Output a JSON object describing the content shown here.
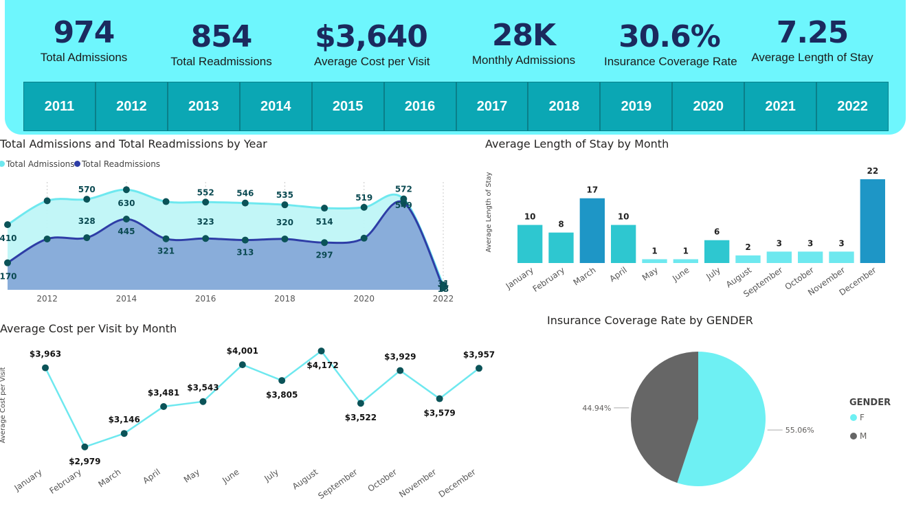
{
  "kpis": [
    {
      "value": "974",
      "label": "Total Admissions"
    },
    {
      "value": "854",
      "label": "Total Readmissions"
    },
    {
      "value": "$3,640",
      "label": "Average Cost per Visit"
    },
    {
      "value": "28K",
      "label": "Monthly Admissions"
    },
    {
      "value": "30.6%",
      "label": "Insurance Coverage Rate"
    },
    {
      "value": "7.25",
      "label": "Average Length of Stay"
    }
  ],
  "years": [
    "2011",
    "2012",
    "2013",
    "2014",
    "2015",
    "2016",
    "2017",
    "2018",
    "2019",
    "2020",
    "2021",
    "2022"
  ],
  "colors": {
    "banner": "#6ef6fd",
    "year_button": "#0ba7b4",
    "kpi_value": "#1b2a5e",
    "admissions": "#6ee8ef",
    "readmissions": "#2e3da6",
    "marker": "#0b5358",
    "bar_light": "#2ec7d0",
    "bar_dark": "#1e96c6",
    "pie_f": "#6ef0f3",
    "pie_m": "#666666"
  },
  "chart_data": [
    {
      "type": "area",
      "title": "Total Admissions and Total Readmissions by Year",
      "legend_position": "top-left",
      "x": [
        2011,
        2012,
        2013,
        2014,
        2015,
        2016,
        2017,
        2018,
        2019,
        2020,
        2021,
        2022
      ],
      "x_tick_labels": [
        "2012",
        "2014",
        "2016",
        "2018",
        "2020",
        "2022"
      ],
      "series": [
        {
          "name": "Total Admissions",
          "values": [
            410,
            560,
            570,
            630,
            555,
            552,
            546,
            535,
            514,
            519,
            572,
            31
          ],
          "labels": [
            "410",
            "",
            "570",
            "630",
            "",
            "552",
            "546",
            "535",
            "514",
            "519",
            "572",
            "31"
          ]
        },
        {
          "name": "Total Readmissions",
          "values": [
            170,
            320,
            328,
            445,
            321,
            323,
            313,
            320,
            297,
            325,
            549,
            13
          ],
          "labels": [
            "170",
            "",
            "328",
            "445",
            "321",
            "323",
            "313",
            "320",
            "297",
            "",
            "549",
            "13"
          ]
        }
      ]
    },
    {
      "type": "bar",
      "title": "Average Length of Stay by Month",
      "ylabel": "Average Length of Stay",
      "categories": [
        "January",
        "February",
        "March",
        "April",
        "May",
        "June",
        "July",
        "August",
        "September",
        "October",
        "November",
        "December"
      ],
      "values": [
        10,
        8,
        17,
        10,
        1,
        1,
        6,
        2,
        3,
        3,
        3,
        22
      ]
    },
    {
      "type": "line",
      "title": "Average Cost per Visit by Month",
      "ylabel": "Average Cost per Visit",
      "categories": [
        "January",
        "February",
        "March",
        "April",
        "May",
        "June",
        "July",
        "August",
        "September",
        "October",
        "November",
        "December"
      ],
      "values": [
        3963,
        2979,
        3146,
        3481,
        3543,
        4001,
        3805,
        4172,
        3522,
        3929,
        3579,
        3957
      ],
      "labels": [
        "$3,963",
        "$2,979",
        "$3,146",
        "$3,481",
        "$3,543",
        "$4,001",
        "$3,805",
        "$4,172",
        "$3,522",
        "$3,929",
        "$3,579",
        "$3,957"
      ]
    },
    {
      "type": "pie",
      "title": "Insurance Coverage Rate by GENDER",
      "legend_title": "GENDER",
      "legend_position": "right",
      "slices": [
        {
          "name": "F",
          "value": 55.06,
          "label": "55.06%"
        },
        {
          "name": "M",
          "value": 44.94,
          "label": "44.94%"
        }
      ]
    }
  ]
}
